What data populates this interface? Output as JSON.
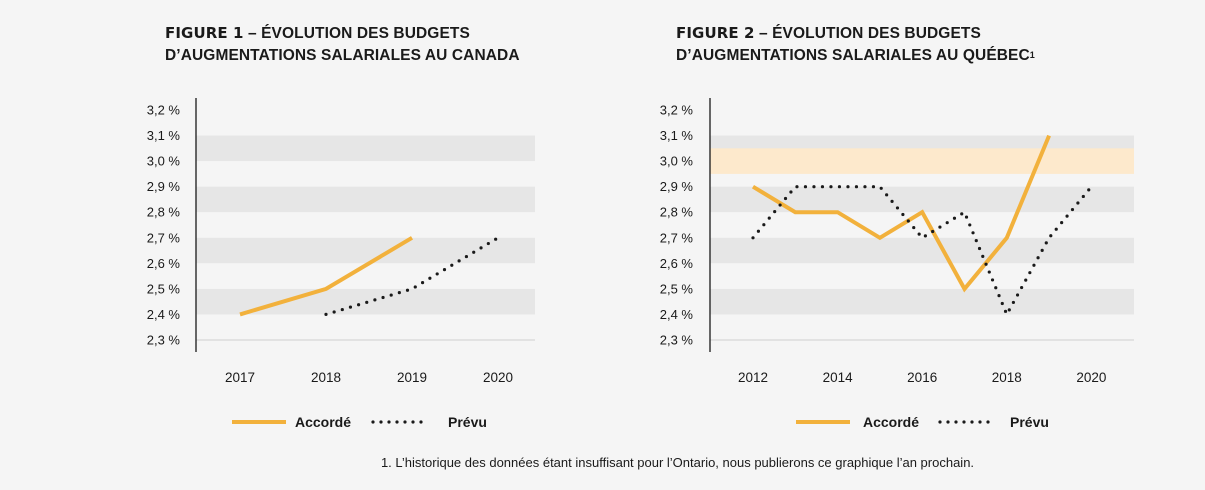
{
  "figures": [
    {
      "label": "FIGURE 1",
      "title_line1": " – ÉVOLUTION DES BUDGETS",
      "title_line2": "D’AUGMENTATIONS SALARIALES AU CANADA",
      "footnote_mark": ""
    },
    {
      "label": "FIGURE 2",
      "title_line1": " – ÉVOLUTION DES BUDGETS",
      "title_line2": "D’AUGMENTATIONS SALARIALES AU QUÉBEC",
      "footnote_mark": "1"
    }
  ],
  "colors": {
    "accorde": "#f2b13c",
    "prevu": "#1a1a1a",
    "band_dark": "#e6e6e6",
    "band_light": "#f5f5f5",
    "highlight_band": "#fde9cc"
  },
  "footnote": "1. L’historique des données étant insuffisant pour l’Ontario, nous publierons ce graphique l’an prochain.",
  "chart_data": [
    {
      "type": "line",
      "title": "FIGURE 1 – ÉVOLUTION DES BUDGETS D’AUGMENTATIONS SALARIALES AU CANADA",
      "xlabel": "",
      "ylabel": "",
      "x_ticks": [
        "2017",
        "2018",
        "2019",
        "2020"
      ],
      "y_ticks": [
        "2,3 %",
        "2,4 %",
        "2,5 %",
        "2,6 %",
        "2,7 %",
        "2,8 %",
        "2,9 %",
        "3,0 %",
        "3,1 %",
        "3,2 %"
      ],
      "ylim": [
        2.25,
        3.25
      ],
      "grid": "alternating horizontal bands",
      "legend_position": "bottom",
      "series": [
        {
          "name": "Accordé",
          "style": "solid",
          "x": [
            2017,
            2018,
            2019
          ],
          "values": [
            2.4,
            2.5,
            2.7
          ]
        },
        {
          "name": "Prévu",
          "style": "dotted",
          "x": [
            2018,
            2019,
            2020
          ],
          "values": [
            2.4,
            2.5,
            2.7
          ]
        }
      ]
    },
    {
      "type": "line",
      "title": "FIGURE 2 – ÉVOLUTION DES BUDGETS D’AUGMENTATIONS SALARIALES AU QUÉBEC",
      "xlabel": "",
      "ylabel": "",
      "x_ticks": [
        "2012",
        "2014",
        "2016",
        "2018",
        "2020"
      ],
      "y_ticks": [
        "2,3 %",
        "2,4 %",
        "2,5 %",
        "2,6 %",
        "2,7 %",
        "2,8 %",
        "2,9 %",
        "3,0 %",
        "3,1 %",
        "3,2 %"
      ],
      "ylim": [
        2.25,
        3.25
      ],
      "highlight_band": [
        2.95,
        3.05
      ],
      "grid": "alternating horizontal bands",
      "legend_position": "bottom",
      "series": [
        {
          "name": "Accordé",
          "style": "solid",
          "x": [
            2012,
            2013,
            2014,
            2015,
            2016,
            2017,
            2018,
            2019
          ],
          "values": [
            2.9,
            2.8,
            2.8,
            2.7,
            2.8,
            2.5,
            2.7,
            3.1
          ]
        },
        {
          "name": "Prévu",
          "style": "dotted",
          "x": [
            2012,
            2013,
            2014,
            2015,
            2016,
            2017,
            2018,
            2019,
            2020
          ],
          "values": [
            2.7,
            2.9,
            2.9,
            2.9,
            2.7,
            2.8,
            2.4,
            2.7,
            2.9
          ]
        }
      ]
    }
  ]
}
